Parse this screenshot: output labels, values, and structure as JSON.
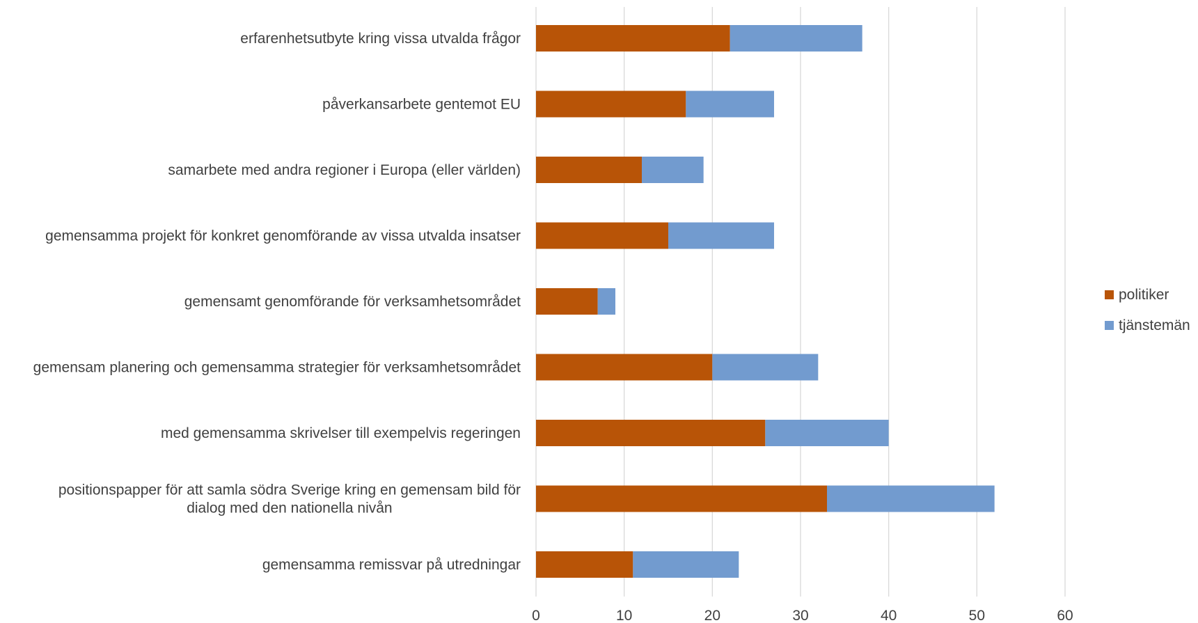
{
  "chart_data": {
    "type": "bar",
    "orientation": "horizontal",
    "stacked": true,
    "categories": [
      [
        "erfarenhetsutbyte kring vissa utvalda frågor"
      ],
      [
        "påverkansarbete gentemot EU"
      ],
      [
        "samarbete med andra regioner i Europa (eller världen)"
      ],
      [
        "gemensamma projekt för konkret genomförande av vissa utvalda insatser"
      ],
      [
        "gemensamt genomförande för verksamhetsområdet"
      ],
      [
        "gemensam planering och gemensamma strategier för verksamhetsområdet"
      ],
      [
        "med gemensamma skrivelser till exempelvis regeringen"
      ],
      [
        "positionspapper för att samla södra Sverige kring en gemensam bild för",
        "dialog med den nationella nivån"
      ],
      [
        "gemensamma remissvar på utredningar"
      ]
    ],
    "series": [
      {
        "name": "politiker",
        "color": "#B85407",
        "values": [
          22,
          17,
          12,
          15,
          7,
          20,
          26,
          33,
          11
        ]
      },
      {
        "name": "tjänstemän",
        "color": "#729BCF",
        "values": [
          15,
          10,
          7,
          12,
          2,
          12,
          14,
          19,
          12
        ]
      }
    ],
    "x_ticks": [
      "0",
      "10",
      "20",
      "30",
      "40",
      "50",
      "60"
    ],
    "xlim": [
      0,
      60
    ],
    "title": "",
    "xlabel": "",
    "ylabel": "",
    "grid": "vertical",
    "grid_color": "#D9D9D9",
    "legend_position": "right"
  }
}
